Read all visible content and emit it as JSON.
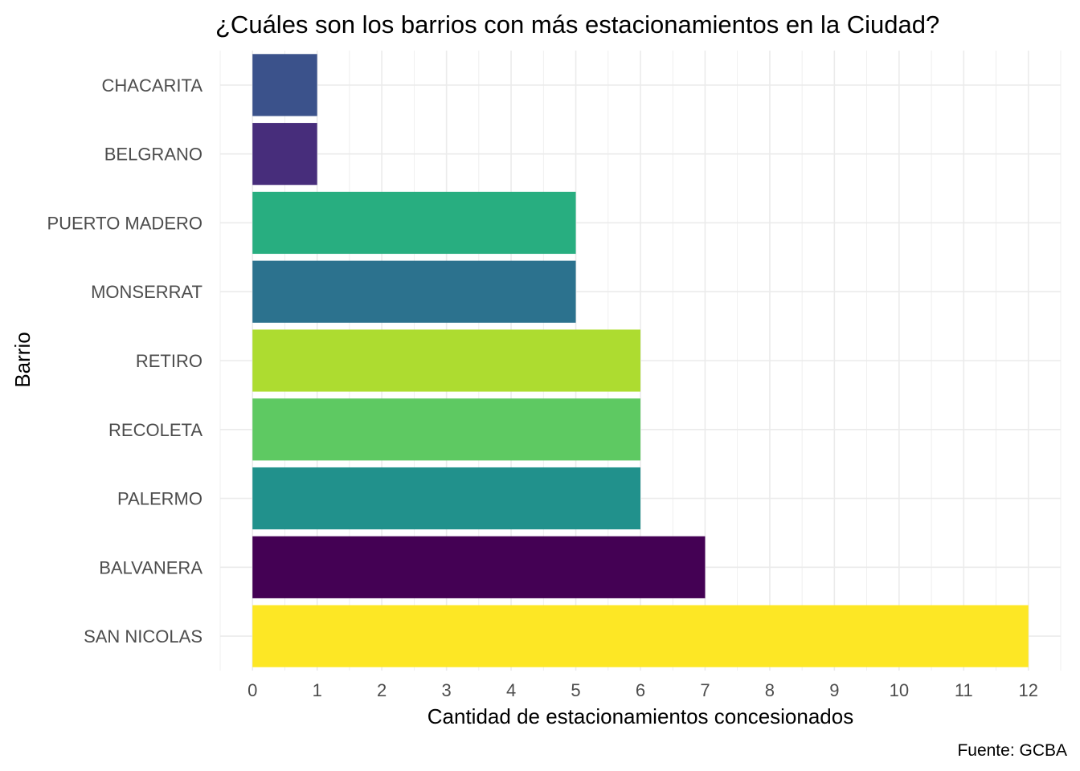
{
  "chart_data": {
    "type": "bar",
    "orientation": "horizontal",
    "title": "¿Cuáles son los barrios con más estacionamientos en la Ciudad?",
    "xlabel": "Cantidad de estacionamientos concesionados",
    "ylabel": "Barrio",
    "caption": "Fuente: GCBA",
    "xlim": [
      -0.5,
      12.5
    ],
    "x_ticks": [
      0,
      1,
      2,
      3,
      4,
      5,
      6,
      7,
      8,
      9,
      10,
      11,
      12
    ],
    "grid": true,
    "legend": "none",
    "categories": [
      "SAN NICOLAS",
      "BALVANERA",
      "PALERMO",
      "RECOLETA",
      "RETIRO",
      "MONSERRAT",
      "PUERTO MADERO",
      "BELGRANO",
      "CHACARITA"
    ],
    "values": [
      12,
      7,
      6,
      6,
      6,
      5,
      5,
      1,
      1
    ],
    "colors": [
      "#fde725",
      "#440154",
      "#21918c",
      "#5ec962",
      "#addc30",
      "#2c728e",
      "#28ae80",
      "#472d7b",
      "#3b528b"
    ]
  }
}
